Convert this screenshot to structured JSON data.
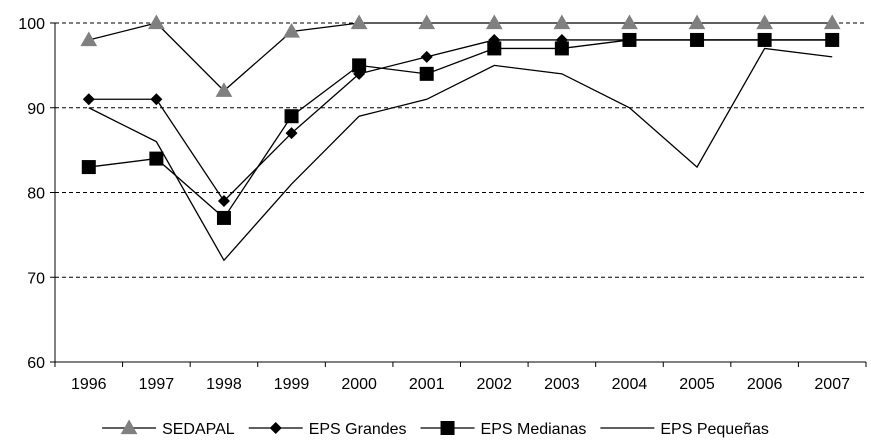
{
  "chart_data": {
    "type": "line",
    "title": "",
    "xlabel": "",
    "ylabel": "",
    "categories": [
      "1996",
      "1997",
      "1998",
      "1999",
      "2000",
      "2001",
      "2002",
      "2003",
      "2004",
      "2005",
      "2006",
      "2007"
    ],
    "ylim": [
      60,
      100
    ],
    "yticks": [
      "60",
      "70",
      "80",
      "90",
      "100"
    ],
    "grid": "horizontal-dashed",
    "legend_position": "bottom",
    "series": [
      {
        "name": "SEDAPAL",
        "marker": "triangle",
        "color": "#808080",
        "line_color": "#000000",
        "values": [
          98,
          100,
          92,
          99,
          100,
          100,
          100,
          100,
          100,
          100,
          100,
          100
        ]
      },
      {
        "name": "EPS Grandes",
        "marker": "diamond",
        "color": "#000000",
        "line_color": "#000000",
        "values": [
          91,
          91,
          79,
          87,
          94,
          96,
          98,
          98,
          98,
          98,
          98,
          98
        ]
      },
      {
        "name": "EPS Medianas",
        "marker": "square",
        "color": "#000000",
        "line_color": "#000000",
        "values": [
          83,
          84,
          77,
          89,
          95,
          94,
          97,
          97,
          98,
          98,
          98,
          98
        ]
      },
      {
        "name": "EPS Pequeñas",
        "marker": "none",
        "color": "#000000",
        "line_color": "#000000",
        "values": [
          90,
          86,
          72,
          81,
          89,
          91,
          95,
          94,
          90,
          83,
          97,
          96
        ]
      }
    ]
  }
}
